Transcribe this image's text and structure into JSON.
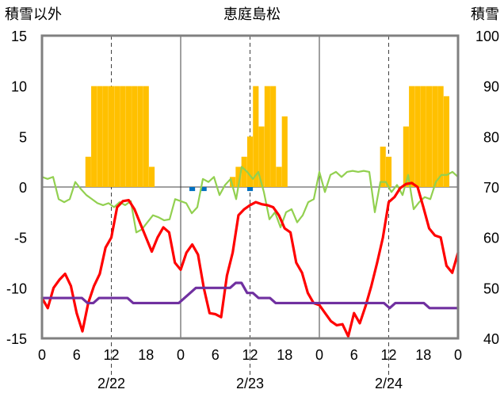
{
  "chart_data": {
    "type": "line",
    "title": "恵庭島松",
    "left_axis_label": "積雪以外",
    "right_axis_label": "積雪",
    "left_ylim": [
      -15,
      15
    ],
    "left_yticks": [
      "15",
      "10",
      "5",
      "0",
      "-5",
      "-10",
      "-15"
    ],
    "right_ylim": [
      40,
      100
    ],
    "right_yticks": [
      "100",
      "90",
      "80",
      "70",
      "60",
      "50",
      "40"
    ],
    "x_hours_range": [
      0,
      72
    ],
    "x_tick_labels": [
      "0",
      "6",
      "12",
      "18",
      "0",
      "6",
      "12",
      "18",
      "0",
      "6",
      "12",
      "18",
      "0"
    ],
    "date_labels": [
      "2/22",
      "2/23",
      "2/24"
    ],
    "grid": "dashed vertical at 12h, solid day separators",
    "colors": {
      "snowfall": "#FFC000",
      "temperature": "#FF0000",
      "wind_speed": "#92D050",
      "precipitation": "#0070C0",
      "snow_depth": "#7030A0"
    },
    "series": [
      {
        "key": "snowfall",
        "kind": "bar",
        "values": [
          0,
          0,
          0,
          0,
          0,
          0,
          0,
          3,
          10,
          10,
          10,
          10,
          10,
          10,
          10,
          10,
          10,
          10,
          2,
          0,
          0,
          0,
          0,
          0,
          0,
          0,
          0,
          0,
          0,
          0,
          0,
          0,
          1,
          2,
          3,
          5,
          10,
          6,
          10,
          10,
          2,
          7,
          0,
          0,
          0,
          0,
          0,
          0,
          0,
          0,
          0,
          0,
          0,
          0,
          0,
          0,
          0,
          0,
          4,
          3,
          0,
          0,
          6,
          10,
          10,
          10,
          10,
          10,
          10,
          9,
          0,
          0
        ]
      },
      {
        "key": "precipitation",
        "kind": "bar",
        "values": [
          0,
          0,
          0,
          0,
          0,
          0,
          0,
          0,
          0,
          0,
          0,
          0,
          0,
          0,
          0,
          0,
          0,
          0,
          0,
          0,
          0,
          0,
          0,
          0,
          0,
          -0.4,
          0,
          -0.4,
          0,
          0,
          0,
          0,
          0,
          0,
          0,
          -0.4,
          0,
          0,
          0,
          0,
          0,
          0,
          0,
          0,
          0,
          0,
          0,
          0,
          0,
          0,
          0,
          0,
          0,
          0,
          0,
          0,
          0,
          0,
          0,
          0,
          0,
          0,
          0,
          0,
          0,
          0,
          0,
          0,
          0,
          0,
          0,
          0
        ]
      },
      {
        "key": "wind_speed",
        "kind": "line",
        "values": [
          1.0,
          0.8,
          1.0,
          -1.2,
          -1.5,
          -1.2,
          0.5,
          -0.2,
          -0.8,
          -1.2,
          -1.6,
          -1.8,
          -1.6,
          -2.0,
          -1.5,
          -1.8,
          -1.4,
          -4.5,
          -4.2,
          -3.5,
          -2.8,
          -3.0,
          -3.3,
          -3.2,
          -1.2,
          -1.4,
          -1.6,
          -2.6,
          -2.0,
          0.8,
          0.5,
          1.0,
          -0.8,
          0.2,
          0.8,
          -1.2,
          2.0,
          1.5,
          0.8,
          1.5,
          -0.5,
          -3.2,
          -2.5,
          -4.0,
          -2.5,
          -2.2,
          -3.5,
          -2.8,
          -1.5,
          -1.2,
          1.5,
          -0.5,
          1.2,
          1.5,
          1.0,
          1.5,
          1.6,
          1.5,
          1.6,
          1.5,
          -2.5,
          0.5,
          0.5,
          -0.5,
          0.2,
          -0.8,
          1.2,
          -2.2,
          -1.5,
          -1.0,
          -1.2,
          0.5,
          1.2,
          1.2,
          1.5,
          1.0
        ]
      },
      {
        "key": "temperature",
        "kind": "line",
        "values": [
          -11.0,
          -12.0,
          -10.0,
          -9.2,
          -8.6,
          -9.8,
          -12.5,
          -14.3,
          -11.5,
          -9.8,
          -8.6,
          -6.0,
          -5.0,
          -2.0,
          -1.4,
          -1.3,
          -2.2,
          -3.6,
          -5.0,
          -6.4,
          -5.0,
          -4.0,
          -4.5,
          -7.5,
          -8.2,
          -6.5,
          -5.7,
          -6.7,
          -10.0,
          -12.5,
          -12.6,
          -12.9,
          -8.8,
          -6.5,
          -2.8,
          -2.2,
          -1.8,
          -1.5,
          -1.7,
          -1.8,
          -2.0,
          -2.8,
          -4.1,
          -4.5,
          -7.5,
          -8.5,
          -10.5,
          -11.5,
          -11.7,
          -12.5,
          -13.3,
          -13.7,
          -13.6,
          -14.8,
          -12.5,
          -13.5,
          -11.8,
          -9.8,
          -7.5,
          -5.0,
          -1.5,
          -1.0,
          -0.1,
          0.3,
          0.4,
          0.0,
          -2.0,
          -4.1,
          -4.8,
          -5.0,
          -7.8,
          -8.5,
          -6.5
        ]
      },
      {
        "key": "snow_depth",
        "kind": "line",
        "axis": "right",
        "values": [
          48,
          48,
          48,
          48,
          48,
          48,
          48,
          48,
          47,
          47,
          48,
          48,
          48,
          48,
          48,
          48,
          47,
          47,
          47,
          47,
          47,
          47,
          47,
          47,
          47,
          48,
          49,
          50,
          50,
          50,
          50,
          50,
          50,
          50,
          51,
          51,
          49,
          49,
          48,
          48,
          48,
          47,
          47,
          47,
          47,
          47,
          47,
          47,
          47,
          47,
          47,
          47,
          47,
          47,
          47,
          47,
          47,
          47,
          47,
          47,
          47,
          46,
          47,
          47,
          47,
          47,
          47,
          47,
          46,
          46,
          46,
          46,
          46,
          46
        ]
      }
    ]
  }
}
